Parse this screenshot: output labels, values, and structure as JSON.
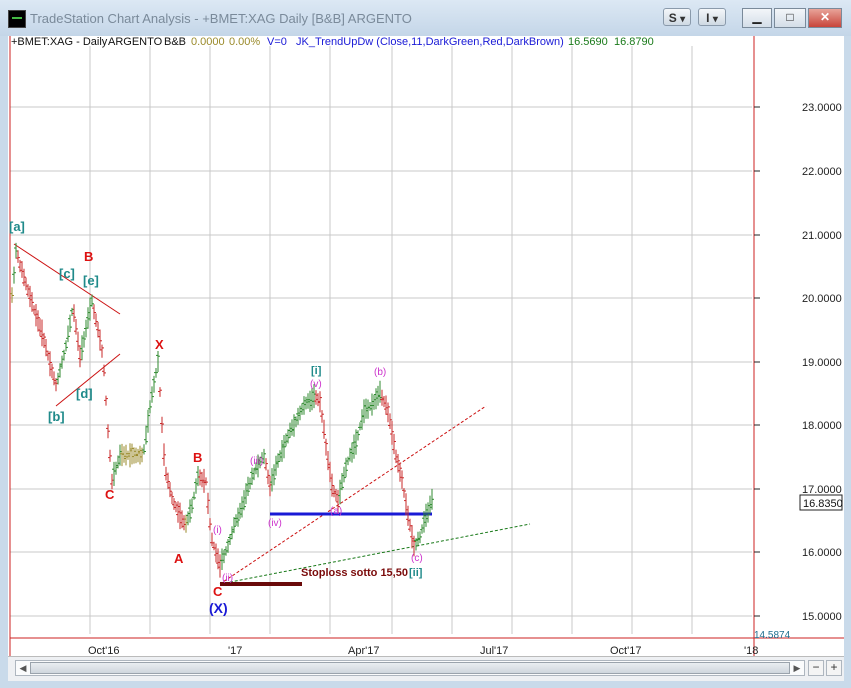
{
  "window": {
    "title": "TradeStation Chart Analysis - +BMET:XAG Daily [B&B] ARGENTO",
    "s_button": "S",
    "i_button": "I",
    "dropdown_glyph": "▾",
    "min_glyph": "▁",
    "max_glyph": "□",
    "close_glyph": "✕"
  },
  "chart": {
    "header": {
      "symbol": "+BMET:XAG - Daily",
      "name": "ARGENTO",
      "group": "B&B",
      "value1": "0.0000",
      "value2": "0.00%",
      "volume": "V=0",
      "indicator": "JK_TrendUpDw (Close,11,DarkGreen,Red,DarkBrown)",
      "ind_value1": "16.5690",
      "ind_value2": "16.8790"
    },
    "price_labels": [
      "23.0000",
      "22.0000",
      "21.0000",
      "20.0000",
      "19.0000",
      "18.0000",
      "17.0000",
      "16.0000",
      "15.0000"
    ],
    "last_price": "16.8350",
    "low_price": "14.5874",
    "date_labels": [
      "Oct'16",
      "'17",
      "Apr'17",
      "Jul'17",
      "Oct'17",
      "'18"
    ],
    "annotations": {
      "a_bracket": "[a]",
      "b_bracket": "[b]",
      "c_bracket": "[c]",
      "d_bracket": "[d]",
      "e_bracket": "[e]",
      "wave_B1": "B",
      "wave_C1": "C",
      "wave_X": "X",
      "wave_B2": "B",
      "wave_A": "A",
      "wave_C2": "C",
      "wave_X_paren": "(X)",
      "wave_i_bracket": "[i]",
      "wave_ii_bracket": "[ii]",
      "sub_i": "(i)",
      "sub_ii": "(ii)",
      "sub_iii": "(iii)",
      "sub_iv": "(iv)",
      "sub_v": "(v)",
      "sub_a": "(a)",
      "sub_b": "(b)",
      "sub_c": "(c)",
      "stoploss": "Stoploss  sotto 15,50"
    },
    "colors": {
      "up_bar": "#2f8a2f",
      "down_bar": "#c92a2a",
      "neutral_bar": "#9a8a2a",
      "teal_label": "#1f8a8a",
      "red_label": "#dd1111",
      "magenta_label": "#cc33cc",
      "blue_line": "#1a1ad6",
      "stoploss": "#7a0a0a"
    }
  },
  "scrollbar": {
    "left_arrow": "◀",
    "right_arrow": "▶",
    "zoom_out": "−",
    "zoom_in": "+"
  }
}
